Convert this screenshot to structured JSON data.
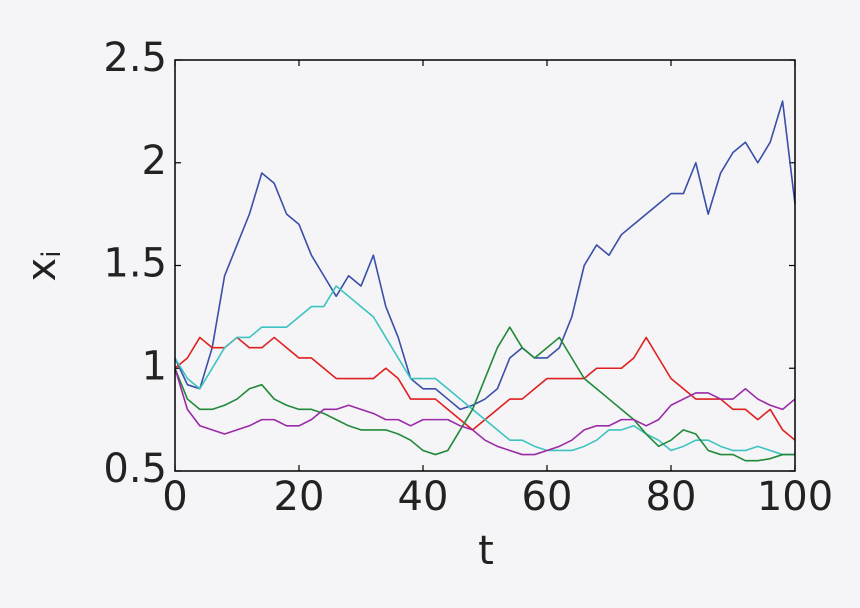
{
  "chart_data": {
    "type": "line",
    "xlabel": "t",
    "ylabel": "x",
    "ylabel_sub": "i",
    "x": [
      0,
      2,
      4,
      6,
      8,
      10,
      12,
      14,
      16,
      18,
      20,
      22,
      24,
      26,
      28,
      30,
      32,
      34,
      36,
      38,
      40,
      42,
      44,
      46,
      48,
      50,
      52,
      54,
      56,
      58,
      60,
      62,
      64,
      66,
      68,
      70,
      72,
      74,
      76,
      78,
      80,
      82,
      84,
      86,
      88,
      90,
      92,
      94,
      96,
      98,
      100
    ],
    "xlim": [
      0,
      100
    ],
    "ylim": [
      0.5,
      2.5
    ],
    "xticks": [
      0,
      20,
      40,
      60,
      80,
      100
    ],
    "yticks": [
      0.5,
      1,
      1.5,
      2,
      2.5
    ],
    "grid": false,
    "series": [
      {
        "color": "#3a4fa8",
        "values": [
          1.05,
          0.92,
          0.9,
          1.1,
          1.45,
          1.6,
          1.75,
          1.95,
          1.9,
          1.75,
          1.7,
          1.55,
          1.45,
          1.35,
          1.45,
          1.4,
          1.55,
          1.3,
          1.15,
          0.95,
          0.9,
          0.9,
          0.85,
          0.8,
          0.82,
          0.85,
          0.9,
          1.05,
          1.1,
          1.05,
          1.05,
          1.1,
          1.25,
          1.5,
          1.6,
          1.55,
          1.65,
          1.7,
          1.75,
          1.8,
          1.85,
          1.85,
          2.0,
          1.75,
          1.95,
          2.05,
          2.1,
          2.0,
          2.1,
          2.3,
          1.8
        ]
      },
      {
        "color": "#e02020",
        "values": [
          1.0,
          1.05,
          1.15,
          1.1,
          1.1,
          1.15,
          1.1,
          1.1,
          1.15,
          1.1,
          1.05,
          1.05,
          1.0,
          0.95,
          0.95,
          0.95,
          0.95,
          1.0,
          0.95,
          0.85,
          0.85,
          0.85,
          0.8,
          0.75,
          0.7,
          0.75,
          0.8,
          0.85,
          0.85,
          0.9,
          0.95,
          0.95,
          0.95,
          0.95,
          1.0,
          1.0,
          1.0,
          1.05,
          1.15,
          1.05,
          0.95,
          0.9,
          0.85,
          0.85,
          0.85,
          0.8,
          0.8,
          0.75,
          0.8,
          0.7,
          0.65
        ]
      },
      {
        "color": "#3cc4c0",
        "values": [
          1.05,
          0.95,
          0.9,
          1.0,
          1.1,
          1.15,
          1.15,
          1.2,
          1.2,
          1.2,
          1.25,
          1.3,
          1.3,
          1.4,
          1.35,
          1.3,
          1.25,
          1.15,
          1.05,
          0.95,
          0.95,
          0.95,
          0.9,
          0.85,
          0.8,
          0.75,
          0.7,
          0.65,
          0.65,
          0.62,
          0.6,
          0.6,
          0.6,
          0.62,
          0.65,
          0.7,
          0.7,
          0.72,
          0.68,
          0.65,
          0.6,
          0.62,
          0.65,
          0.65,
          0.62,
          0.6,
          0.6,
          0.62,
          0.6,
          0.58,
          0.58
        ]
      },
      {
        "color": "#218a3a",
        "values": [
          1.0,
          0.85,
          0.8,
          0.8,
          0.82,
          0.85,
          0.9,
          0.92,
          0.85,
          0.82,
          0.8,
          0.8,
          0.78,
          0.75,
          0.72,
          0.7,
          0.7,
          0.7,
          0.68,
          0.65,
          0.6,
          0.58,
          0.6,
          0.7,
          0.8,
          0.95,
          1.1,
          1.2,
          1.1,
          1.05,
          1.1,
          1.15,
          1.05,
          0.95,
          0.9,
          0.85,
          0.8,
          0.75,
          0.68,
          0.62,
          0.65,
          0.7,
          0.68,
          0.6,
          0.58,
          0.58,
          0.55,
          0.55,
          0.56,
          0.58,
          0.58
        ]
      },
      {
        "color": "#9b2aa8",
        "values": [
          1.0,
          0.8,
          0.72,
          0.7,
          0.68,
          0.7,
          0.72,
          0.75,
          0.75,
          0.72,
          0.72,
          0.75,
          0.8,
          0.8,
          0.82,
          0.8,
          0.78,
          0.75,
          0.75,
          0.72,
          0.75,
          0.75,
          0.75,
          0.72,
          0.7,
          0.65,
          0.62,
          0.6,
          0.58,
          0.58,
          0.6,
          0.62,
          0.65,
          0.7,
          0.72,
          0.72,
          0.75,
          0.75,
          0.72,
          0.75,
          0.82,
          0.85,
          0.88,
          0.88,
          0.85,
          0.85,
          0.9,
          0.85,
          0.82,
          0.8,
          0.85
        ]
      }
    ]
  }
}
